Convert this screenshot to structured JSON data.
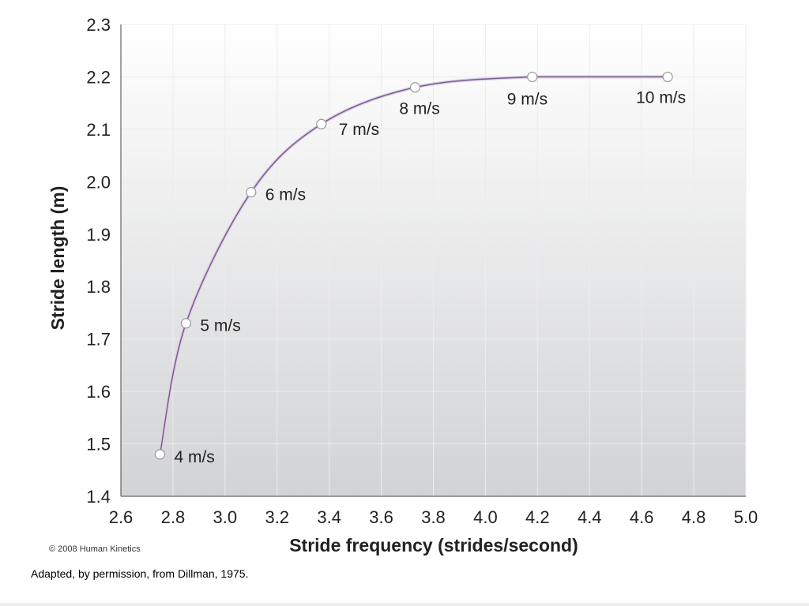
{
  "chart_data": {
    "type": "line",
    "title": "",
    "xlabel": "Stride frequency (strides/second)",
    "ylabel": "Stride length (m)",
    "xlim": [
      2.6,
      5.0
    ],
    "ylim": [
      1.4,
      2.3
    ],
    "grid": true,
    "x_ticks": [
      "2.6",
      "2.8",
      "3.0",
      "3.2",
      "3.4",
      "3.6",
      "3.8",
      "4.0",
      "4.2",
      "4.4",
      "4.6",
      "4.8",
      "5.0"
    ],
    "y_ticks": [
      "1.4",
      "1.5",
      "1.6",
      "1.7",
      "1.8",
      "1.9",
      "2.0",
      "2.1",
      "2.2",
      "2.3"
    ],
    "series": [
      {
        "x": [
          2.75,
          2.85,
          3.1,
          3.37,
          3.73,
          4.18,
          4.7
        ],
        "y": [
          1.48,
          1.73,
          1.98,
          2.11,
          2.18,
          2.2,
          2.2
        ],
        "labels": [
          "4 m/s",
          "5 m/s",
          "6 m/s",
          "7 m/s",
          "8 m/s",
          "9 m/s",
          "10 m/s"
        ]
      }
    ],
    "colors": {
      "line": "#7e5c95",
      "plot_top": "#ffffff",
      "plot_bottom": "#d2d3d5",
      "grid": "#ececec"
    }
  },
  "footer": {
    "copyright": "© 2008 Human Kinetics",
    "caption": "Adapted, by permission, from Dillman, 1975."
  }
}
